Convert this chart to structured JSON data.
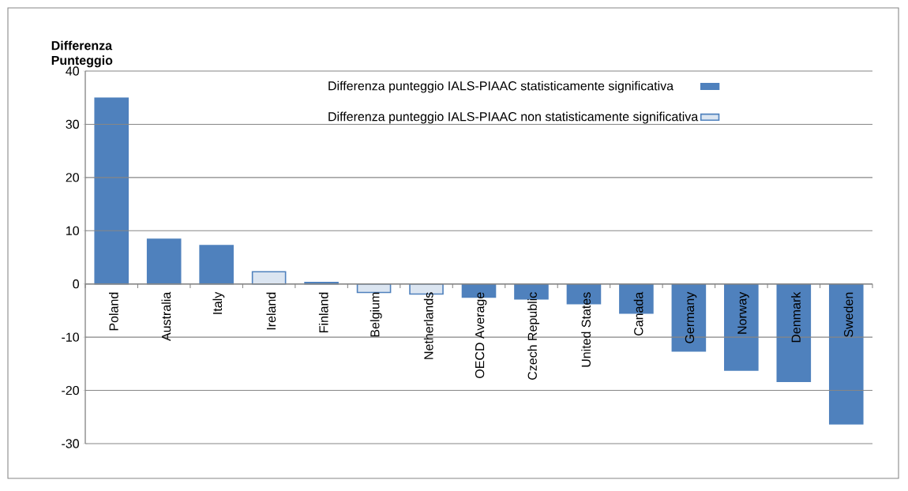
{
  "chart_data": {
    "type": "bar",
    "ylabel": "Differenza Punteggio",
    "categories": [
      "Poland",
      "Australia",
      "Italy",
      "Ireland",
      "Finland",
      "Belgium",
      "Netherlands",
      "OECD Average",
      "Czech Republic",
      "United States",
      "Canada",
      "Germany",
      "Norway",
      "Denmark",
      "Sweden"
    ],
    "series": [
      {
        "name": "Differenza punteggio IALS-PIAAC statisticamente significativa",
        "color": "#4f81bd",
        "values": [
          34.9,
          8.4,
          7.2,
          null,
          0.3,
          null,
          null,
          -2.5,
          -2.8,
          -3.7,
          -5.5,
          -12.6,
          -16.2,
          -18.3,
          -26.3
        ]
      },
      {
        "name": "Differenza punteggio IALS-PIAAC non statisticamente significativa",
        "color": "#dbe5f1",
        "values": [
          null,
          null,
          null,
          2.3,
          null,
          -1.6,
          -1.9,
          null,
          null,
          null,
          null,
          null,
          null,
          null,
          null
        ]
      }
    ],
    "ylim": [
      -30,
      40
    ],
    "yticks": [
      -30,
      -20,
      -10,
      0,
      10,
      20,
      30,
      40
    ],
    "grid": "y",
    "legend": "top right"
  }
}
